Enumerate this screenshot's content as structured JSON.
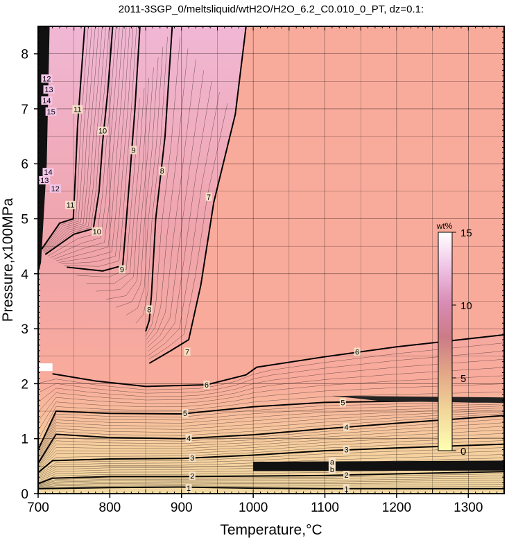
{
  "chart_data": {
    "type": "heatmap",
    "title": "2011-3SGP_0/meltsliquid/wtH2O/H2O_6.2_C0.010_0_PT, dz=0.1:",
    "xlabel": "Temperature,°C",
    "ylabel": "Pressure,x100MPa",
    "xlim": [
      700,
      1350
    ],
    "ylim": [
      0,
      8.5
    ],
    "x_ticks": [
      700,
      800,
      900,
      1000,
      1100,
      1200,
      1300
    ],
    "y_ticks": [
      0,
      1,
      2,
      3,
      4,
      5,
      6,
      7,
      8
    ],
    "x_tick_labels": [
      "700",
      "800",
      "900",
      "1000",
      "1100",
      "1200",
      "1300"
    ],
    "y_tick_labels": [
      "0",
      "1",
      "2",
      "3",
      "4",
      "5",
      "6",
      "7",
      "8"
    ],
    "grid": true,
    "colorbar": {
      "title": "wt%",
      "range": [
        0,
        15
      ],
      "ticks": [
        0,
        5,
        10,
        15
      ],
      "tick_labels": [
        "0",
        "5",
        "10",
        "15"
      ],
      "colors": [
        "#ffffb2",
        "#f2d79a",
        "#e3a887",
        "#cb7b86",
        "#d98cb6",
        "#f0c8e8",
        "#ffffff"
      ]
    },
    "colors": {
      "plateau": "#f9ab9b",
      "low_pressure": "#f1d9a2"
    },
    "contours": [
      {
        "level": 1,
        "label": "1",
        "points": [
          [
            700,
            0.09
          ],
          [
            800,
            0.11
          ],
          [
            900,
            0.12
          ],
          [
            1000,
            0.1
          ],
          [
            1100,
            0.09
          ],
          [
            1200,
            0.09
          ],
          [
            1350,
            0.09
          ]
        ],
        "labels_at": [
          [
            910,
            0.1
          ],
          [
            1130,
            0.09
          ]
        ]
      },
      {
        "level": 2,
        "label": "2",
        "points": [
          [
            700,
            0.18
          ],
          [
            720,
            0.28
          ],
          [
            800,
            0.31
          ],
          [
            900,
            0.31
          ],
          [
            1000,
            0.32
          ],
          [
            1100,
            0.33
          ],
          [
            1200,
            0.36
          ],
          [
            1350,
            0.4
          ]
        ],
        "labels_at": [
          [
            915,
            0.32
          ],
          [
            1130,
            0.34
          ]
        ]
      },
      {
        "level": 3,
        "label": "3",
        "points": [
          [
            700,
            0.38
          ],
          [
            720,
            0.6
          ],
          [
            800,
            0.63
          ],
          [
            900,
            0.64
          ],
          [
            1000,
            0.7
          ],
          [
            1100,
            0.78
          ],
          [
            1200,
            0.83
          ],
          [
            1350,
            0.9
          ]
        ],
        "labels_at": [
          [
            915,
            0.65
          ],
          [
            1130,
            0.8
          ]
        ]
      },
      {
        "level": 4,
        "label": "4",
        "points": [
          [
            700,
            0.55
          ],
          [
            725,
            1.08
          ],
          [
            800,
            1.02
          ],
          [
            900,
            1.0
          ],
          [
            1000,
            1.07
          ],
          [
            1100,
            1.18
          ],
          [
            1200,
            1.28
          ],
          [
            1350,
            1.42
          ]
        ],
        "labels_at": [
          [
            910,
            1.01
          ],
          [
            1130,
            1.21
          ]
        ]
      },
      {
        "level": 5,
        "label": "5",
        "points": [
          [
            700,
            0.8
          ],
          [
            725,
            1.5
          ],
          [
            800,
            1.46
          ],
          [
            900,
            1.45
          ],
          [
            1000,
            1.58
          ],
          [
            1100,
            1.66
          ],
          [
            1200,
            1.68
          ],
          [
            1350,
            1.7
          ]
        ],
        "labels_at": [
          [
            905,
            1.46
          ],
          [
            1125,
            1.66
          ]
        ]
      },
      {
        "level": 6,
        "label": "6",
        "points": [
          [
            720,
            2.18
          ],
          [
            780,
            2.05
          ],
          [
            850,
            1.95
          ],
          [
            935,
            1.98
          ],
          [
            990,
            2.16
          ],
          [
            1005,
            2.3
          ],
          [
            1100,
            2.49
          ],
          [
            1200,
            2.67
          ],
          [
            1350,
            2.89
          ]
        ],
        "labels_at": [
          [
            935,
            1.98
          ],
          [
            1145,
            2.58
          ]
        ]
      },
      {
        "level": 7,
        "label": "7",
        "points": [
          [
            855,
            2.37
          ],
          [
            885,
            2.6
          ],
          [
            910,
            2.8
          ],
          [
            927,
            3.8
          ],
          [
            945,
            5.3
          ],
          [
            975,
            6.9
          ],
          [
            990,
            8.5
          ]
        ],
        "labels_at": [
          [
            908,
            2.58
          ],
          [
            938,
            5.4
          ]
        ]
      },
      {
        "level": 8,
        "label": "8",
        "points": [
          [
            850,
            2.95
          ],
          [
            855,
            3.15
          ],
          [
            858,
            3.6
          ],
          [
            864,
            5.0
          ],
          [
            877,
            6.5
          ],
          [
            887,
            8.5
          ]
        ],
        "labels_at": [
          [
            855,
            3.35
          ],
          [
            873,
            5.87
          ]
        ]
      },
      {
        "level": 9,
        "label": "9",
        "points": [
          [
            740,
            4.12
          ],
          [
            790,
            4.05
          ],
          [
            818,
            4.15
          ],
          [
            822,
            4.8
          ],
          [
            828,
            5.8
          ],
          [
            835,
            7.0
          ],
          [
            842,
            8.5
          ]
        ],
        "labels_at": [
          [
            817,
            4.08
          ],
          [
            833,
            6.25
          ]
        ]
      },
      {
        "level": 10,
        "label": "10",
        "points": [
          [
            710,
            4.35
          ],
          [
            750,
            4.72
          ],
          [
            777,
            4.82
          ],
          [
            785,
            5.5
          ],
          [
            790,
            6.4
          ],
          [
            797,
            7.3
          ],
          [
            804,
            8.5
          ]
        ],
        "labels_at": [
          [
            782,
            4.77
          ],
          [
            790,
            6.6
          ]
        ]
      },
      {
        "level": 11,
        "label": "11",
        "points": [
          [
            705,
            4.45
          ],
          [
            730,
            4.92
          ],
          [
            749,
            5.0
          ],
          [
            752,
            5.8
          ],
          [
            755,
            6.7
          ],
          [
            760,
            7.6
          ],
          [
            765,
            8.5
          ]
        ],
        "labels_at": [
          [
            745,
            5.25
          ],
          [
            755,
            6.99
          ]
        ]
      }
    ],
    "contour_labels_extra": [
      "12",
      "13",
      "14",
      "15"
    ],
    "annotations": [
      "a",
      "b"
    ]
  }
}
